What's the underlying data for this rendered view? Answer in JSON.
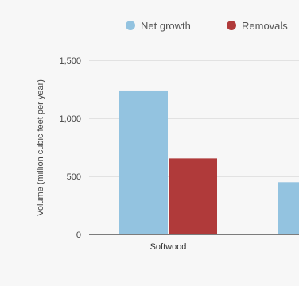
{
  "chart_data": {
    "type": "bar",
    "categories": [
      "Softwood",
      ""
    ],
    "series": [
      {
        "name": "Net growth",
        "values": [
          1240,
          450
        ],
        "color": "#93c3e0"
      },
      {
        "name": "Removals",
        "values": [
          655,
          null
        ],
        "color": "#b03a3a"
      }
    ],
    "ylabel": "Volume (million cubic feet per year)",
    "xlabel": "",
    "ylim": [
      0,
      1500
    ],
    "yticks": [
      0,
      500,
      1000,
      1500
    ],
    "ytick_labels": [
      "0",
      "500",
      "1,000",
      "1,500"
    ],
    "grid": true,
    "legend": "top"
  }
}
